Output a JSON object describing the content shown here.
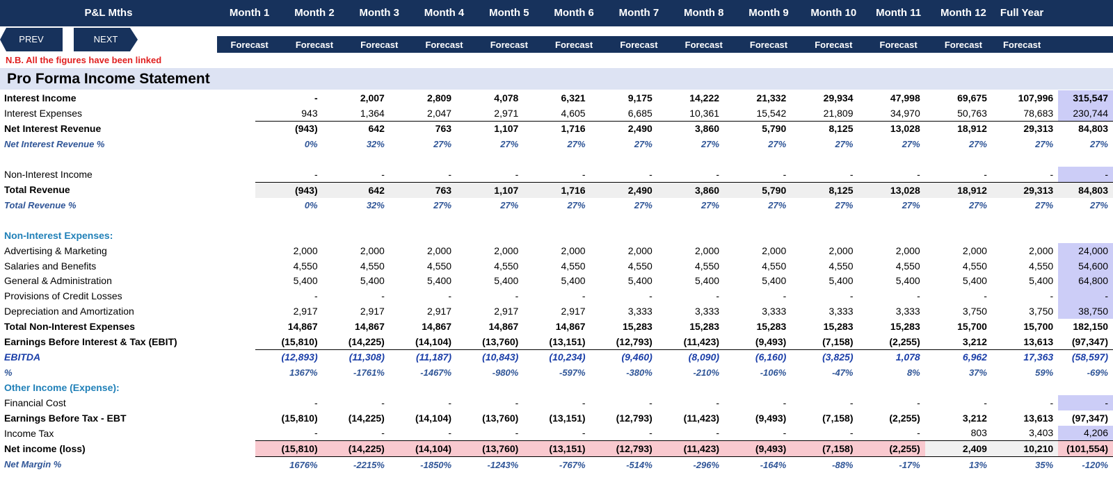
{
  "header": {
    "title": "P&L Mths",
    "months": [
      "Month 1",
      "Month 2",
      "Month 3",
      "Month 4",
      "Month 5",
      "Month 6",
      "Month 7",
      "Month 8",
      "Month 9",
      "Month 10",
      "Month 11",
      "Month 12",
      "Full Year"
    ],
    "subheaders": [
      "Forecast",
      "Forecast",
      "Forecast",
      "Forecast",
      "Forecast",
      "Forecast",
      "Forecast",
      "Forecast",
      "Forecast",
      "Forecast",
      "Forecast",
      "Forecast",
      "Forecast"
    ]
  },
  "nav": {
    "prev_label": "PREV",
    "next_label": "NEXT"
  },
  "note": "N.B. All the figures have been linked",
  "section_title": "Pro Forma Income Statement",
  "rows": [
    {
      "label": "Interest Income",
      "style": "bold",
      "values": [
        "-",
        "2,007",
        "2,809",
        "4,078",
        "6,321",
        "9,175",
        "14,222",
        "21,332",
        "29,934",
        "47,998",
        "69,675",
        "107,996",
        "315,547"
      ],
      "fy_shade": true
    },
    {
      "label": "Interest Expenses",
      "style": "normal",
      "values": [
        "943",
        "1,364",
        "2,047",
        "2,971",
        "4,605",
        "6,685",
        "10,361",
        "15,542",
        "21,809",
        "34,970",
        "50,763",
        "78,683",
        "230,744"
      ],
      "fy_shade": true
    },
    {
      "label": "Net Interest Revenue",
      "style": "bold",
      "values": [
        "(943)",
        "642",
        "763",
        "1,107",
        "1,716",
        "2,490",
        "3,860",
        "5,790",
        "8,125",
        "13,028",
        "18,912",
        "29,313",
        "84,803"
      ]
    },
    {
      "label": "Net Interest Revenue %",
      "style": "pct",
      "values": [
        "0%",
        "32%",
        "27%",
        "27%",
        "27%",
        "27%",
        "27%",
        "27%",
        "27%",
        "27%",
        "27%",
        "27%",
        "27%"
      ]
    },
    {
      "label": "",
      "style": "blank",
      "values": [
        "",
        "",
        "",
        "",
        "",
        "",
        "",
        "",
        "",
        "",
        "",
        "",
        ""
      ]
    },
    {
      "label": "Non-Interest Income",
      "style": "normal",
      "values": [
        "-",
        "-",
        "-",
        "-",
        "-",
        "-",
        "-",
        "-",
        "-",
        "-",
        "-",
        "-",
        "-"
      ],
      "fy_shade": true
    },
    {
      "label": "Total Revenue",
      "style": "bold shade",
      "values": [
        "(943)",
        "642",
        "763",
        "1,107",
        "1,716",
        "2,490",
        "3,860",
        "5,790",
        "8,125",
        "13,028",
        "18,912",
        "29,313",
        "84,803"
      ]
    },
    {
      "label": "Total Revenue %",
      "style": "pct",
      "values": [
        "0%",
        "32%",
        "27%",
        "27%",
        "27%",
        "27%",
        "27%",
        "27%",
        "27%",
        "27%",
        "27%",
        "27%",
        "27%"
      ]
    },
    {
      "label": "",
      "style": "blank",
      "values": [
        "",
        "",
        "",
        "",
        "",
        "",
        "",
        "",
        "",
        "",
        "",
        "",
        ""
      ]
    },
    {
      "label": "Non-Interest Expenses:",
      "style": "heading",
      "values": [
        "",
        "",
        "",
        "",
        "",
        "",
        "",
        "",
        "",
        "",
        "",
        "",
        ""
      ]
    },
    {
      "label": "Advertising & Marketing",
      "style": "normal",
      "values": [
        "2,000",
        "2,000",
        "2,000",
        "2,000",
        "2,000",
        "2,000",
        "2,000",
        "2,000",
        "2,000",
        "2,000",
        "2,000",
        "2,000",
        "24,000"
      ],
      "fy_shade": true
    },
    {
      "label": "Salaries and Benefits",
      "style": "normal",
      "values": [
        "4,550",
        "4,550",
        "4,550",
        "4,550",
        "4,550",
        "4,550",
        "4,550",
        "4,550",
        "4,550",
        "4,550",
        "4,550",
        "4,550",
        "54,600"
      ],
      "fy_shade": true
    },
    {
      "label": "General & Administration",
      "style": "normal",
      "values": [
        "5,400",
        "5,400",
        "5,400",
        "5,400",
        "5,400",
        "5,400",
        "5,400",
        "5,400",
        "5,400",
        "5,400",
        "5,400",
        "5,400",
        "64,800"
      ],
      "fy_shade": true
    },
    {
      "label": "Provisions of Credit Losses",
      "style": "normal",
      "values": [
        "-",
        "-",
        "-",
        "-",
        "-",
        "-",
        "-",
        "-",
        "-",
        "-",
        "-",
        "-",
        "-"
      ],
      "fy_shade": true
    },
    {
      "label": "Depreciation and Amortization",
      "style": "normal",
      "values": [
        "2,917",
        "2,917",
        "2,917",
        "2,917",
        "2,917",
        "3,333",
        "3,333",
        "3,333",
        "3,333",
        "3,333",
        "3,750",
        "3,750",
        "38,750"
      ],
      "fy_shade": true
    },
    {
      "label": "Total Non-Interest Expenses",
      "style": "bold",
      "values": [
        "14,867",
        "14,867",
        "14,867",
        "14,867",
        "14,867",
        "15,283",
        "15,283",
        "15,283",
        "15,283",
        "15,283",
        "15,700",
        "15,700",
        "182,150"
      ]
    },
    {
      "label": "Earnings Before Interest & Tax (EBIT)",
      "style": "bold",
      "values": [
        "(15,810)",
        "(14,225)",
        "(14,104)",
        "(13,760)",
        "(13,151)",
        "(12,793)",
        "(11,423)",
        "(9,493)",
        "(7,158)",
        "(2,255)",
        "3,212",
        "13,613",
        "(97,347)"
      ]
    },
    {
      "label": "EBITDA",
      "style": "ebitda",
      "values": [
        "(12,893)",
        "(11,308)",
        "(11,187)",
        "(10,843)",
        "(10,234)",
        "(9,460)",
        "(8,090)",
        "(6,160)",
        "(3,825)",
        "1,078",
        "6,962",
        "17,363",
        "(58,597)"
      ]
    },
    {
      "label": "%",
      "style": "pct",
      "values": [
        "1367%",
        "-1761%",
        "-1467%",
        "-980%",
        "-597%",
        "-380%",
        "-210%",
        "-106%",
        "-47%",
        "8%",
        "37%",
        "59%",
        "-69%"
      ]
    },
    {
      "label": "Other Income (Expense):",
      "style": "heading",
      "values": [
        "",
        "",
        "",
        "",
        "",
        "",
        "",
        "",
        "",
        "",
        "",
        "",
        ""
      ]
    },
    {
      "label": "Financial Cost",
      "style": "normal",
      "values": [
        "-",
        "-",
        "-",
        "-",
        "-",
        "-",
        "-",
        "-",
        "-",
        "-",
        "-",
        "-",
        "-"
      ],
      "fy_shade": true
    },
    {
      "label": "Earnings Before Tax - EBT",
      "style": "bold",
      "values": [
        "(15,810)",
        "(14,225)",
        "(14,104)",
        "(13,760)",
        "(13,151)",
        "(12,793)",
        "(11,423)",
        "(9,493)",
        "(7,158)",
        "(2,255)",
        "3,212",
        "13,613",
        "(97,347)"
      ]
    },
    {
      "label": "Income Tax",
      "style": "normal",
      "values": [
        "-",
        "-",
        "-",
        "-",
        "-",
        "-",
        "-",
        "-",
        "-",
        "-",
        "803",
        "3,403",
        "4,206"
      ],
      "fy_shade": true
    },
    {
      "label": "Net income (loss)",
      "style": "bold net",
      "values": [
        "(15,810)",
        "(14,225)",
        "(14,104)",
        "(13,760)",
        "(13,151)",
        "(12,793)",
        "(11,423)",
        "(9,493)",
        "(7,158)",
        "(2,255)",
        "2,409",
        "10,210",
        "(101,554)"
      ]
    },
    {
      "label": "Net Margin %",
      "style": "pct",
      "values": [
        "1676%",
        "-2215%",
        "-1850%",
        "-1243%",
        "-767%",
        "-514%",
        "-296%",
        "-164%",
        "-88%",
        "-17%",
        "13%",
        "35%",
        "-120%"
      ]
    }
  ]
}
